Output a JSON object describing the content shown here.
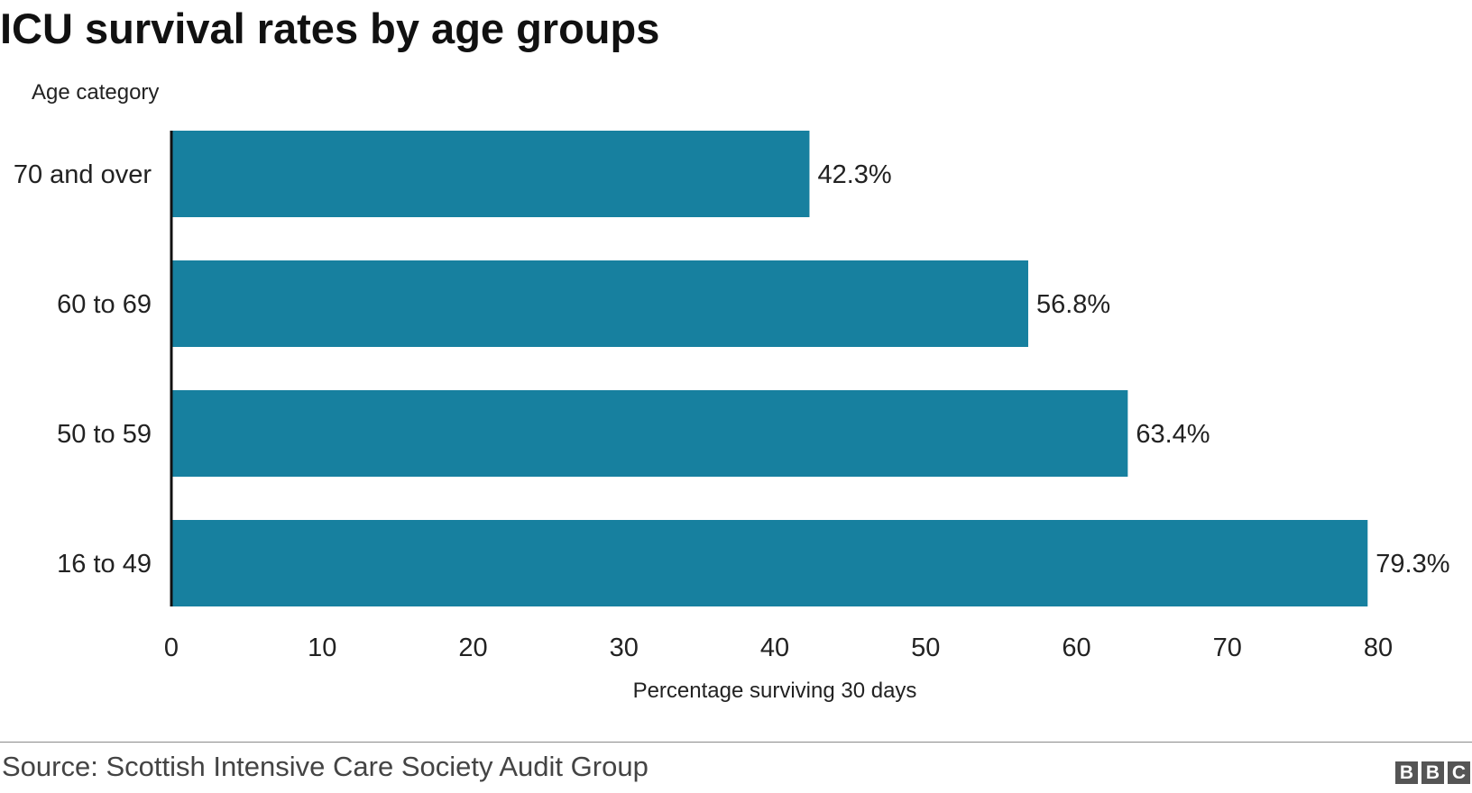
{
  "chart_data": {
    "type": "bar",
    "orientation": "horizontal",
    "title": "ICU survival rates by age groups",
    "ylabel": "Age category",
    "xlabel": "Percentage surviving 30 days",
    "categories": [
      "70 and over",
      "60 to 69",
      "50 to 59",
      "16 to 49"
    ],
    "values": [
      42.3,
      56.8,
      63.4,
      79.3
    ],
    "data_labels": [
      "42.3%",
      "56.8%",
      "63.4%",
      "79.3%"
    ],
    "xlim": [
      0,
      80
    ],
    "xticks": [
      0,
      10,
      20,
      30,
      40,
      50,
      60,
      70,
      80
    ],
    "grid": false,
    "bar_color": "#17809f"
  },
  "footer": {
    "source": "Source: Scottish Intensive Care Society Audit Group",
    "logo_letters": [
      "B",
      "B",
      "C"
    ]
  }
}
